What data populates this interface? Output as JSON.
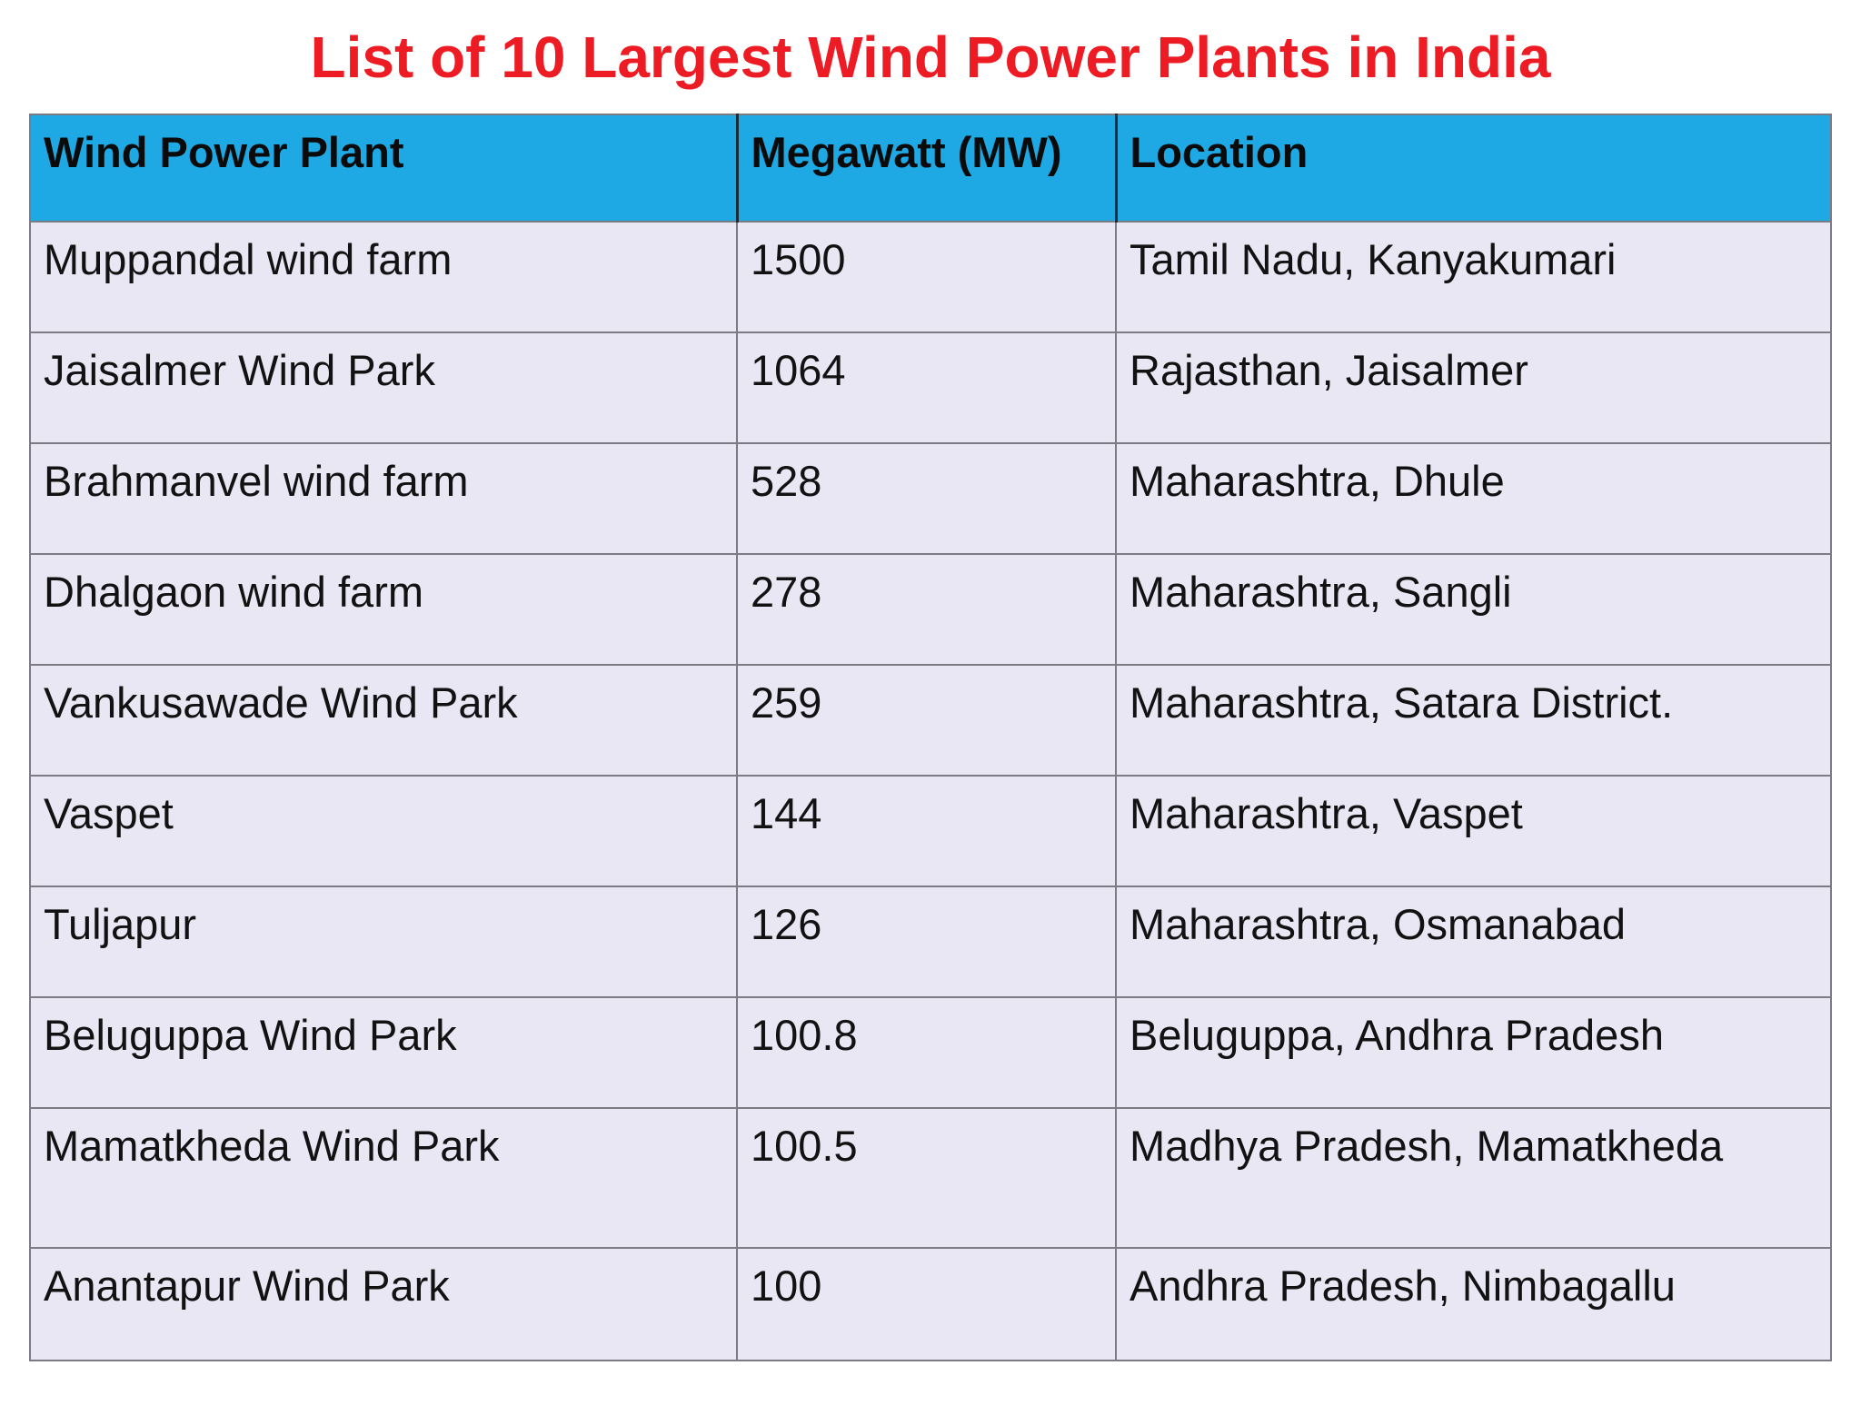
{
  "title": "List of 10 Largest Wind Power Plants in India",
  "colors": {
    "title-red": "#ed1c24",
    "header-bg": "#1ea9e4",
    "row-bg": "#e9e7f4",
    "border-gray": "#7b7b83",
    "header-divider": "#1d2b36",
    "text": "#121212"
  },
  "table": {
    "columns": [
      "Wind Power Plant",
      "Megawatt (MW)",
      "Location"
    ],
    "rows": [
      {
        "plant": "Muppandal wind farm",
        "mw": "1500",
        "location": "Tamil Nadu, Kanyakumari"
      },
      {
        "plant": "Jaisalmer Wind Park",
        "mw": "1064",
        "location": "Rajasthan, Jaisalmer"
      },
      {
        "plant": "Brahmanvel wind farm",
        "mw": "528",
        "location": "Maharashtra, Dhule"
      },
      {
        "plant": "Dhalgaon wind farm",
        "mw": "278",
        "location": "Maharashtra, Sangli"
      },
      {
        "plant": "Vankusawade Wind Park",
        "mw": "259",
        "location": "Maharashtra, Satara District."
      },
      {
        "plant": "Vaspet",
        "mw": "144",
        "location": "Maharashtra, Vaspet"
      },
      {
        "plant": "Tuljapur",
        "mw": "126",
        "location": "Maharashtra, Osmanabad"
      },
      {
        "plant": "Beluguppa Wind Park",
        "mw": "100.8",
        "location": "Beluguppa, Andhra Pradesh"
      },
      {
        "plant": "Mamatkheda Wind Park",
        "mw": "100.5",
        "location": "Madhya Pradesh, Mamatkheda"
      },
      {
        "plant": "Anantapur Wind Park",
        "mw": "100",
        "location": "Andhra Pradesh, Nimbagallu"
      }
    ]
  }
}
